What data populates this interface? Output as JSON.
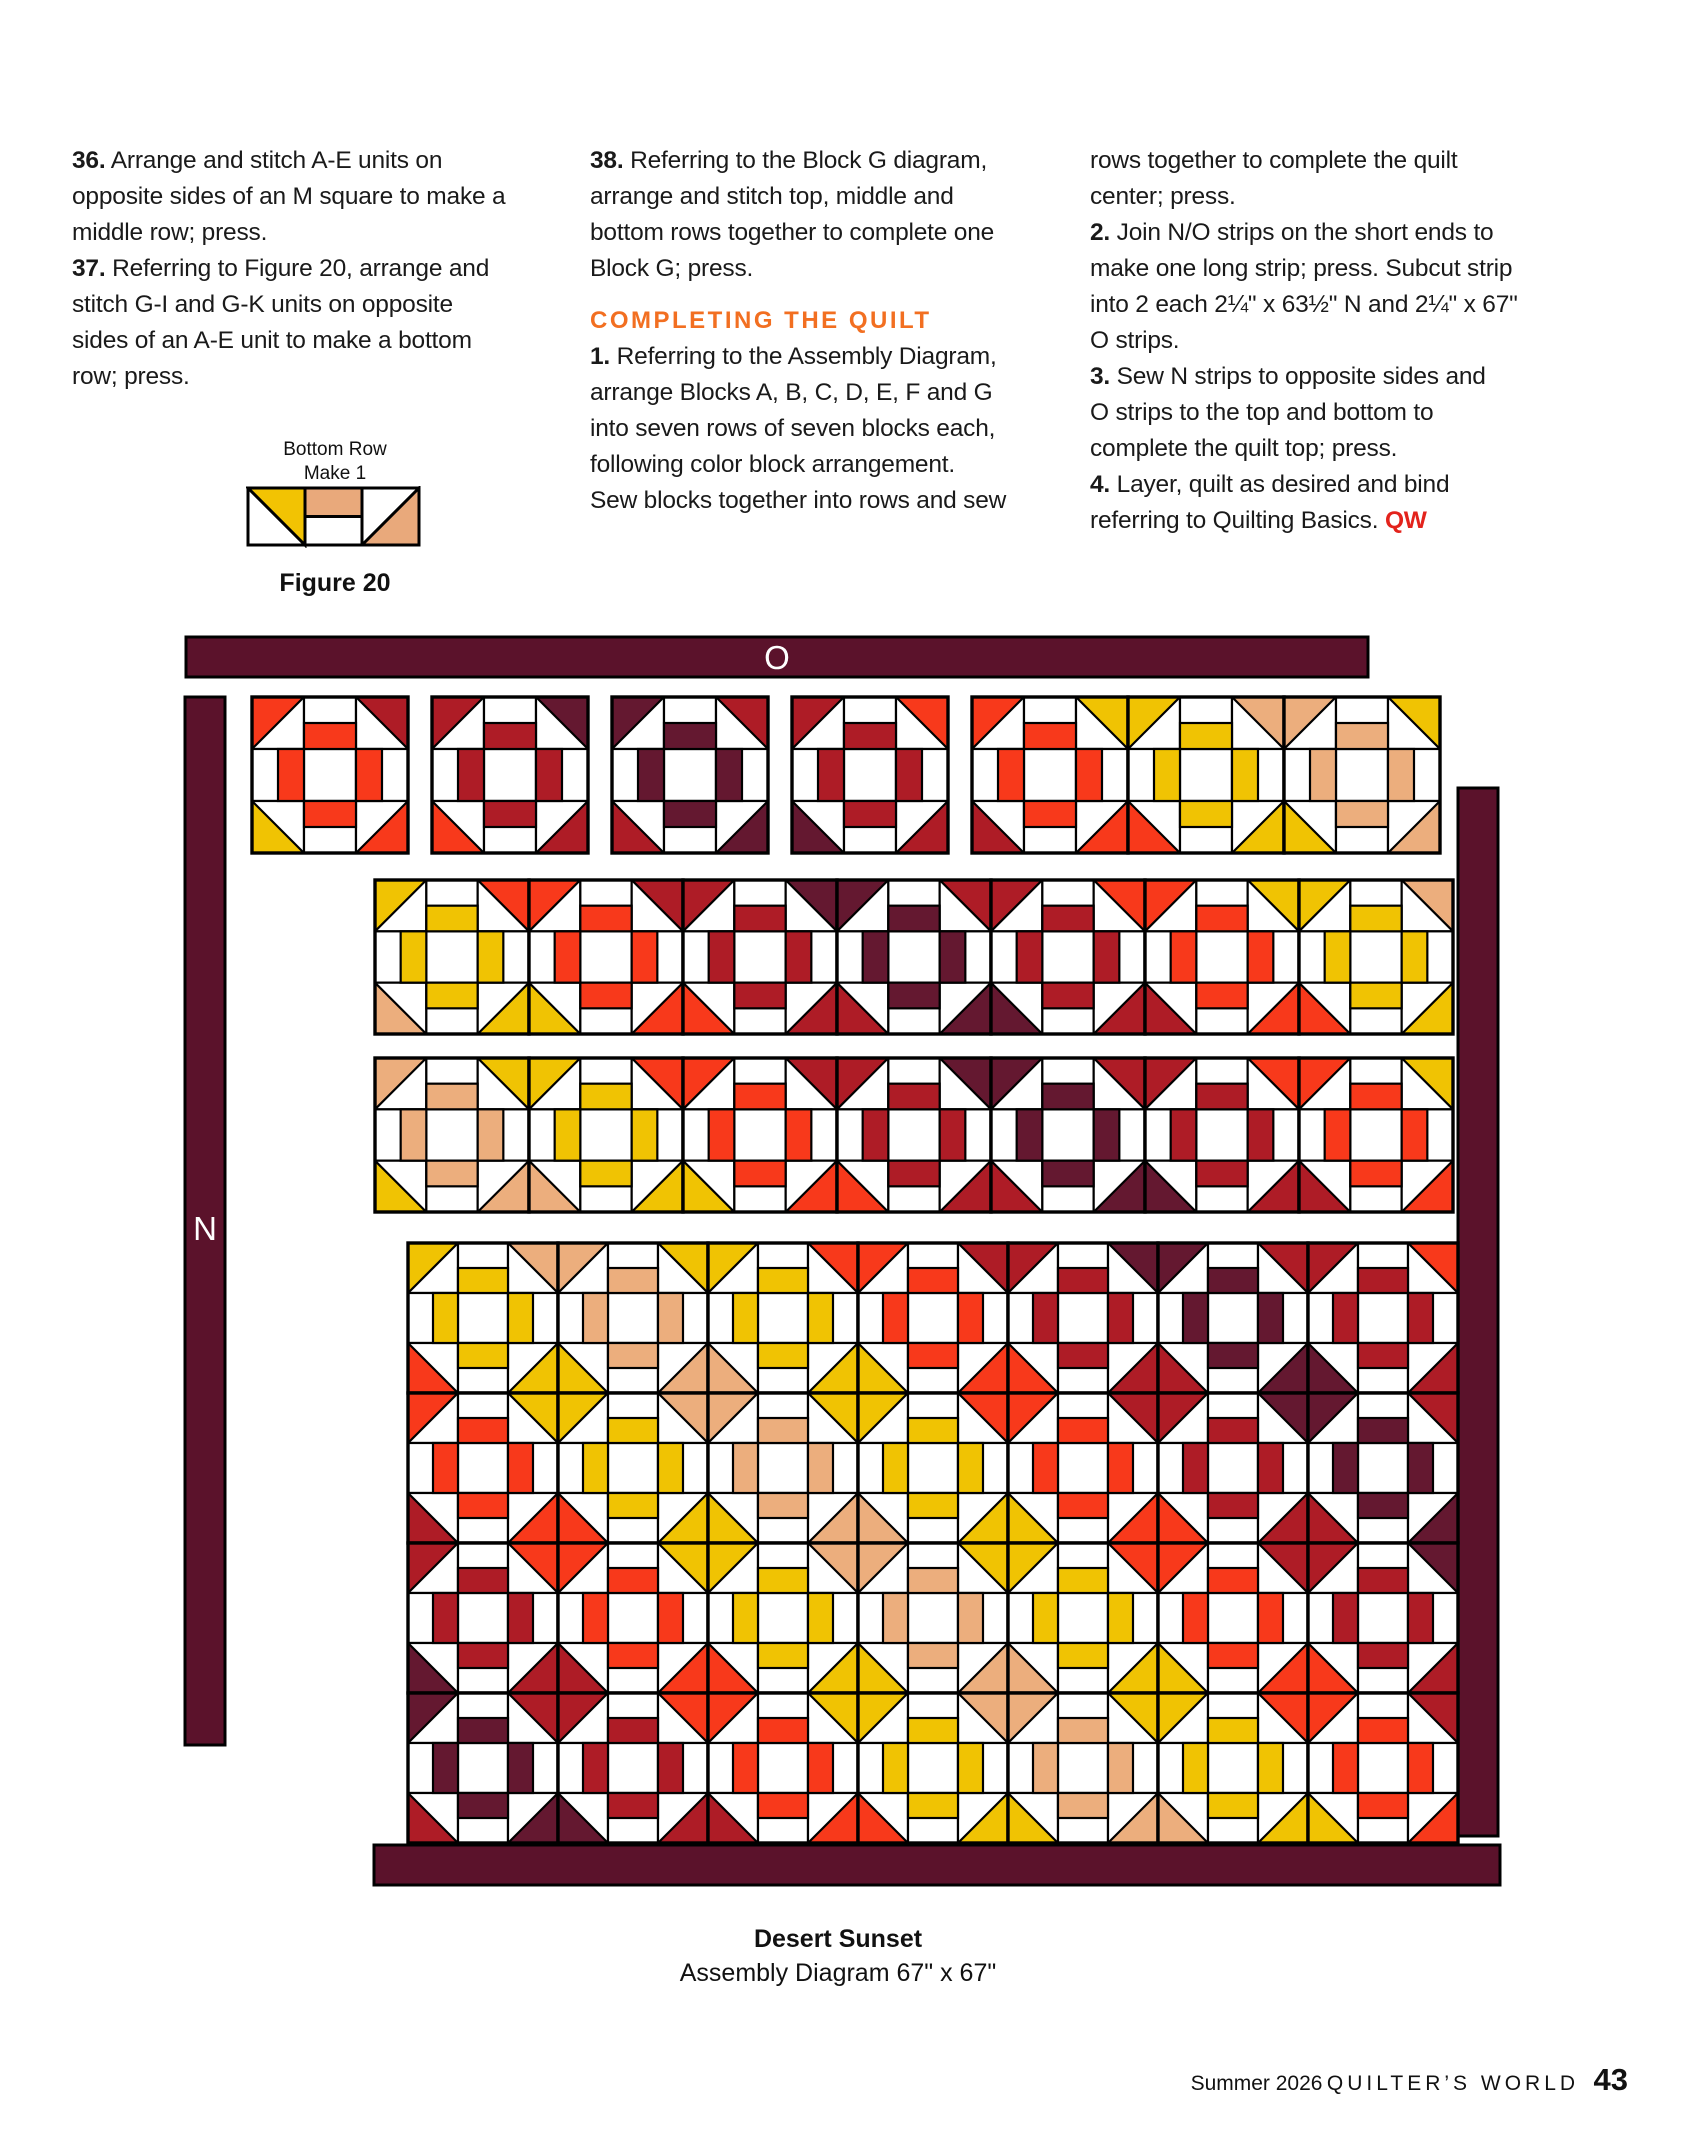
{
  "article": {
    "col1": [
      {
        "parts": [
          {
            "t": "36.",
            "b": true
          },
          {
            "t": " Arrange and stitch A-E units on"
          }
        ]
      },
      {
        "parts": [
          {
            "t": "opposite sides of an M square to make a"
          }
        ]
      },
      {
        "parts": [
          {
            "t": "middle row; press."
          }
        ]
      },
      {
        "parts": [
          {
            "t": "37.",
            "b": true
          },
          {
            "t": " Referring to Figure 20, arrange and"
          }
        ]
      },
      {
        "parts": [
          {
            "t": "stitch G-I and G-K units on opposite"
          }
        ]
      },
      {
        "parts": [
          {
            "t": "sides of an A-E unit to make a bottom"
          }
        ]
      },
      {
        "parts": [
          {
            "t": "row; press."
          }
        ]
      }
    ],
    "col2": [
      {
        "parts": [
          {
            "t": "38.",
            "b": true
          },
          {
            "t": " Referring to the Block G diagram,"
          }
        ]
      },
      {
        "parts": [
          {
            "t": "arrange and stitch top, middle and"
          }
        ]
      },
      {
        "parts": [
          {
            "t": "bottom rows together to complete one"
          }
        ]
      },
      {
        "parts": [
          {
            "t": "Block G; press."
          }
        ]
      },
      {
        "gap": true,
        "parts": []
      },
      {
        "parts": [
          {
            "t": "COMPLETING THE QUILT",
            "h": true
          }
        ]
      },
      {
        "parts": [
          {
            "t": "1.",
            "b": true
          },
          {
            "t": " Referring to the Assembly Diagram,"
          }
        ]
      },
      {
        "parts": [
          {
            "t": "arrange Blocks A, B, C, D, E, F and G"
          }
        ]
      },
      {
        "parts": [
          {
            "t": "into seven rows of seven blocks each,"
          }
        ]
      },
      {
        "parts": [
          {
            "t": "following color block arrangement."
          }
        ]
      },
      {
        "parts": [
          {
            "t": "Sew blocks together into rows and sew"
          }
        ]
      }
    ],
    "col3": [
      {
        "parts": [
          {
            "t": "rows together to complete the quilt"
          }
        ]
      },
      {
        "parts": [
          {
            "t": "center; press."
          }
        ]
      },
      {
        "parts": [
          {
            "t": "2.",
            "b": true
          },
          {
            "t": " Join N/O strips on the short ends to"
          }
        ]
      },
      {
        "parts": [
          {
            "t": "make one long strip; press. Subcut strip"
          }
        ]
      },
      {
        "parts": [
          {
            "t": "into 2 each 2¼\" x 63½\" N and 2¼\" x 67\""
          }
        ]
      },
      {
        "parts": [
          {
            "t": "O strips."
          }
        ]
      },
      {
        "parts": [
          {
            "t": "3.",
            "b": true
          },
          {
            "t": " Sew N strips to opposite sides and"
          }
        ]
      },
      {
        "parts": [
          {
            "t": "O strips to the top and bottom to"
          }
        ]
      },
      {
        "parts": [
          {
            "t": "complete the quilt top; press."
          }
        ]
      },
      {
        "parts": [
          {
            "t": "4.",
            "b": true
          },
          {
            "t": " Layer, quilt as desired and bind"
          }
        ]
      },
      {
        "parts": [
          {
            "t": "referring to Quilting Basics. "
          },
          {
            "t": "QW",
            "r": true
          }
        ]
      }
    ]
  },
  "figure20": {
    "label_line1": "Bottom Row",
    "label_line2": "Make 1",
    "caption": "Figure 20",
    "cells": [
      {
        "type": "hst",
        "corner": "tr",
        "color": "#f2c303"
      },
      {
        "type": "half-bar",
        "half": "top",
        "color": "#e9a97b"
      },
      {
        "type": "hst",
        "corner": "br",
        "color": "#e9a97b"
      }
    ]
  },
  "assembly": {
    "caption_title": "Desert Sunset",
    "caption_sub": "Assembly Diagram 67\" x 67\"",
    "labels": {
      "top_strip": "O",
      "left_strip": "N"
    },
    "palette": {
      "R": "#f8391b",
      "D": "#ae1c26",
      "M": "#641830",
      "Y": "#f0c303",
      "T": "#ecae7d",
      "W": "#ffffff",
      "border_strip": "#5b122b"
    },
    "palette_legend": {
      "R": "red-orange",
      "D": "dark red",
      "M": "maroon",
      "Y": "gold",
      "T": "tan",
      "W": "white"
    },
    "band_sequence": [
      "R",
      "D",
      "M",
      "D",
      "R",
      "Y",
      "T",
      "Y"
    ],
    "grid": {
      "rows": 7,
      "cols": 7
    },
    "block_color_grid": [
      [
        "R",
        "D",
        "M",
        "D",
        "R",
        "Y",
        "T"
      ],
      [
        "Y",
        "R",
        "D",
        "M",
        "D",
        "R",
        "Y"
      ],
      [
        "T",
        "Y",
        "R",
        "D",
        "M",
        "D",
        "R"
      ],
      [
        "Y",
        "T",
        "Y",
        "R",
        "D",
        "M",
        "D"
      ],
      [
        "R",
        "Y",
        "T",
        "Y",
        "R",
        "D",
        "M"
      ],
      [
        "D",
        "R",
        "Y",
        "T",
        "Y",
        "R",
        "D"
      ],
      [
        "M",
        "D",
        "R",
        "Y",
        "T",
        "Y",
        "R"
      ]
    ],
    "sections": [
      {
        "type": "single-blocks",
        "row": 1,
        "count": 4
      },
      {
        "type": "joined-strip",
        "row": 1,
        "cols": "5-7"
      },
      {
        "type": "joined-strip",
        "row": 2,
        "cols": "1-7"
      },
      {
        "type": "joined-strip",
        "row": 3,
        "cols": "1-7"
      },
      {
        "type": "assembled-panel",
        "rows": "4-7",
        "cols": "1-7"
      }
    ]
  },
  "footer": {
    "issue": "Summer 2026",
    "magazine": "QUILTER’S WORLD",
    "page_number": "43"
  }
}
